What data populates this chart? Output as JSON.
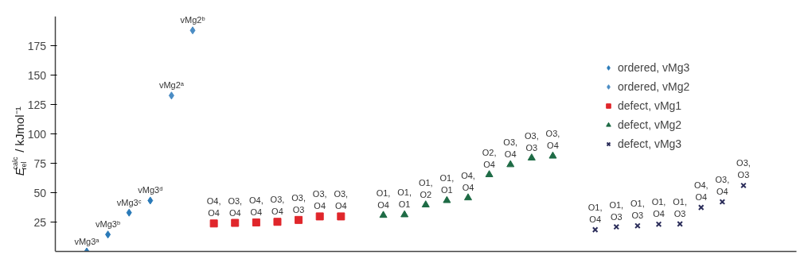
{
  "chart_data": {
    "type": "scatter",
    "ylabel": "E$_{rel}$$^{calc}$ / kJmol⁻¹",
    "categories": [
      null,
      null,
      null,
      null,
      null,
      null,
      null,
      null,
      null,
      null,
      null,
      null,
      null,
      null,
      null,
      null,
      null,
      null,
      null,
      null,
      null,
      null,
      null,
      null,
      null,
      null,
      null,
      null,
      null,
      null,
      null,
      null,
      null,
      null,
      null
    ],
    "ylim": [
      0,
      200
    ],
    "yticks": [
      25,
      50,
      75,
      100,
      125,
      150,
      175
    ],
    "tick_labels": "y",
    "grid": false,
    "legend": "top right",
    "series": [
      {
        "name": "ordered, vMg3",
        "color": "#2a7ab8",
        "marker": "diamond",
        "values": [
          null,
          0,
          14.4,
          33.0,
          43.3,
          null,
          null,
          null,
          null,
          null,
          null,
          null,
          null,
          null,
          null,
          null,
          null,
          null,
          null,
          null,
          null,
          null,
          null,
          null,
          null,
          null,
          null,
          null,
          null,
          null,
          null,
          null,
          null,
          null,
          null
        ],
        "value_labels": [
          null,
          "vMg3ᵃ",
          "vMg3ᵇ",
          "vMg3ᶜ",
          "vMg3ᵈ",
          null,
          null,
          null,
          null,
          null,
          null,
          null,
          null,
          null,
          null,
          null,
          null,
          null,
          null,
          null,
          null,
          null,
          null,
          null,
          null,
          null,
          null,
          null,
          null,
          null,
          null,
          null,
          null,
          null,
          null
        ]
      },
      {
        "name": "ordered, vMg2",
        "color": "#4a8cc4",
        "marker": "diamond",
        "values": [
          null,
          null,
          null,
          null,
          null,
          132.6,
          188,
          null,
          null,
          null,
          null,
          null,
          null,
          null,
          null,
          null,
          null,
          null,
          null,
          null,
          null,
          null,
          null,
          null,
          null,
          null,
          null,
          null,
          null,
          null,
          null,
          null,
          null,
          null,
          null
        ],
        "value_labels": [
          null,
          null,
          null,
          null,
          null,
          "vMg2ᵃ",
          "vMg2ᵇ",
          null,
          null,
          null,
          null,
          null,
          null,
          null,
          null,
          null,
          null,
          null,
          null,
          null,
          null,
          null,
          null,
          null,
          null,
          null,
          null,
          null,
          null,
          null,
          null,
          null,
          null,
          null,
          null
        ]
      },
      {
        "name": "defect, vMg1",
        "color": "#e0262b",
        "marker": "square",
        "values": [
          null,
          null,
          null,
          null,
          null,
          null,
          null,
          23.8,
          24.3,
          24.7,
          25.2,
          26.8,
          29.8,
          29.8,
          null,
          null,
          null,
          null,
          null,
          null,
          null,
          null,
          null,
          null,
          null,
          null,
          null,
          null,
          null,
          null,
          null,
          null,
          null,
          null,
          null
        ],
        "value_labels": [
          null,
          null,
          null,
          null,
          null,
          null,
          null,
          "O4,\nO4",
          "O3,\nO4",
          "O4,\nO4",
          "O3,\nO4",
          "O3,\nO3",
          "O3,\nO4",
          "O3,\nO4",
          null,
          null,
          null,
          null,
          null,
          null,
          null,
          null,
          null,
          null,
          null,
          null,
          null,
          null,
          null,
          null,
          null,
          null,
          null,
          null,
          null
        ]
      },
      {
        "name": "defect, vMg2",
        "color": "#1e6b45",
        "marker": "triangle",
        "values": [
          null,
          null,
          null,
          null,
          null,
          null,
          null,
          null,
          null,
          null,
          null,
          null,
          null,
          null,
          null,
          30.7,
          31.2,
          39.6,
          43.3,
          45.6,
          65.3,
          73.8,
          79.5,
          81.1,
          null,
          null,
          null,
          null,
          null,
          null,
          null,
          null,
          null,
          null,
          null
        ],
        "value_labels": [
          null,
          null,
          null,
          null,
          null,
          null,
          null,
          null,
          null,
          null,
          null,
          null,
          null,
          null,
          null,
          "O1,\nO4",
          "O1,\nO1",
          "O1,\nO2",
          "O1,\nO1",
          "O4,\nO4",
          "O2,\nO4",
          "O3,\nO4",
          "O3,\nO3",
          "O3,\nO4",
          null,
          null,
          null,
          null,
          null,
          null,
          null,
          null,
          null,
          null,
          null
        ]
      },
      {
        "name": "defect, vMg3",
        "color": "#2b2d5a",
        "marker": "cross",
        "values": [
          null,
          null,
          null,
          null,
          null,
          null,
          null,
          null,
          null,
          null,
          null,
          null,
          null,
          null,
          null,
          null,
          null,
          null,
          null,
          null,
          null,
          null,
          null,
          null,
          null,
          18.5,
          20.9,
          21.8,
          23.2,
          23.4,
          37.4,
          42.2,
          56.1,
          null,
          null
        ],
        "value_labels": [
          null,
          null,
          null,
          null,
          null,
          null,
          null,
          null,
          null,
          null,
          null,
          null,
          null,
          null,
          null,
          null,
          null,
          null,
          null,
          null,
          null,
          null,
          null,
          null,
          null,
          "O1,\nO4",
          "O1,\nO3",
          "O1,\nO3",
          "O1,\nO4",
          "O1,\nO3",
          "O4,\nO4",
          "O3,\nO4",
          "O3,\nO3",
          null,
          null
        ]
      }
    ]
  }
}
